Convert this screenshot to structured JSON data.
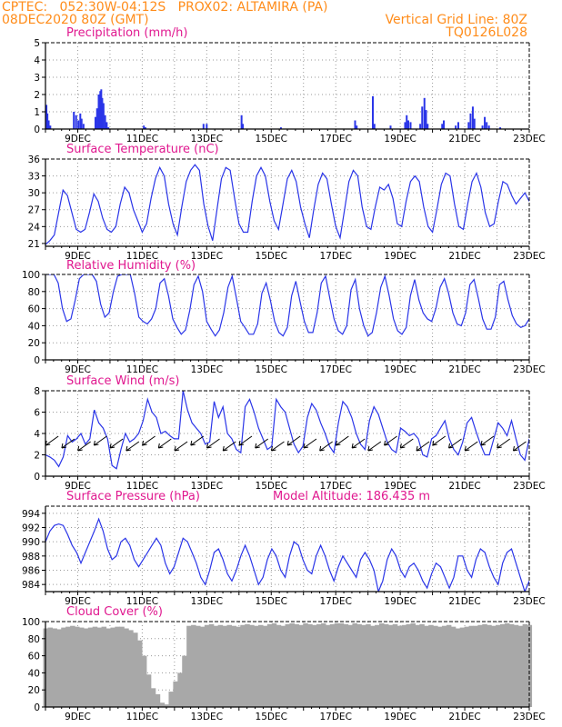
{
  "header": {
    "line1_left": "CPTEC:   052:30W-04:12S   PROX02: ALTAMIRA (PA)",
    "line2_left": "08DEC2020 80Z (GMT)",
    "line2_right": "Vertical Grid Line: 80Z",
    "line3_right": "TQ0126L028"
  },
  "colors": {
    "header": "#ff8c1a",
    "title": "#e0188f",
    "series": "#2a35e8",
    "cloud": "#a8a8a8"
  },
  "x_ticks": [
    "9DEC",
    "11DEC",
    "13DEC",
    "15DEC",
    "17DEC",
    "19DEC",
    "21DEC",
    "23DEC"
  ],
  "extra_label": "Model Altitude: 186.435 m",
  "chart_data": [
    {
      "type": "bar",
      "title": "Precipitation (mm/h)",
      "ylim": [
        0,
        5
      ],
      "yticks": [
        0,
        1,
        2,
        3,
        4,
        5
      ],
      "x_start_day": 8.0,
      "x_end_day": 23.0,
      "points": [
        [
          8.03,
          1.4
        ],
        [
          8.06,
          0.9
        ],
        [
          8.1,
          0.5
        ],
        [
          8.15,
          0.2
        ],
        [
          8.88,
          1.0
        ],
        [
          8.95,
          0.8
        ],
        [
          9.02,
          0.5
        ],
        [
          9.08,
          0.9
        ],
        [
          9.12,
          0.6
        ],
        [
          9.18,
          0.3
        ],
        [
          9.55,
          0.7
        ],
        [
          9.6,
          1.2
        ],
        [
          9.65,
          2.0
        ],
        [
          9.7,
          2.2
        ],
        [
          9.73,
          2.3
        ],
        [
          9.76,
          1.8
        ],
        [
          9.8,
          1.5
        ],
        [
          9.85,
          0.8
        ],
        [
          9.9,
          0.4
        ],
        [
          9.95,
          0.1
        ],
        [
          11.05,
          0.2
        ],
        [
          11.1,
          0.1
        ],
        [
          12.9,
          0.3
        ],
        [
          13.0,
          0.3
        ],
        [
          14.08,
          0.8
        ],
        [
          14.12,
          0.3
        ],
        [
          15.3,
          0.1
        ],
        [
          17.6,
          0.5
        ],
        [
          17.65,
          0.2
        ],
        [
          18.15,
          1.9
        ],
        [
          18.2,
          0.3
        ],
        [
          18.7,
          0.2
        ],
        [
          19.15,
          0.4
        ],
        [
          19.2,
          0.8
        ],
        [
          19.25,
          0.5
        ],
        [
          19.32,
          0.4
        ],
        [
          19.62,
          0.3
        ],
        [
          19.68,
          1.3
        ],
        [
          19.75,
          1.8
        ],
        [
          19.8,
          1.1
        ],
        [
          19.85,
          0.3
        ],
        [
          20.3,
          0.3
        ],
        [
          20.35,
          0.5
        ],
        [
          20.72,
          0.2
        ],
        [
          20.8,
          0.4
        ],
        [
          21.12,
          0.4
        ],
        [
          21.18,
          0.9
        ],
        [
          21.25,
          1.3
        ],
        [
          21.3,
          0.6
        ],
        [
          21.55,
          0.2
        ],
        [
          21.62,
          0.7
        ],
        [
          21.68,
          0.4
        ],
        [
          21.75,
          0.2
        ],
        [
          22.1,
          0.1
        ]
      ]
    },
    {
      "type": "line",
      "title": "Surface Temperature (nC)",
      "ylim": [
        20.5,
        36
      ],
      "yticks": [
        21,
        24,
        27,
        30,
        33,
        36
      ],
      "x_start_day": 8.0,
      "x_step_hours": 3,
      "values": [
        20.8,
        21.5,
        22.5,
        26.5,
        30.5,
        29.5,
        26.5,
        23.5,
        23.0,
        23.5,
        26.5,
        29.8,
        28.5,
        25.5,
        23.5,
        23.0,
        24.0,
        28.0,
        31.0,
        30.0,
        27.0,
        25.0,
        23.0,
        24.5,
        29.0,
        32.5,
        34.5,
        33.0,
        28.0,
        24.5,
        22.5,
        27.5,
        32.0,
        34.0,
        35.0,
        34.0,
        28.0,
        24.0,
        21.5,
        27.0,
        32.5,
        34.5,
        34.0,
        29.0,
        24.5,
        23.0,
        23.0,
        28.5,
        33.0,
        34.5,
        33.0,
        28.5,
        25.0,
        23.5,
        28.0,
        32.5,
        34.0,
        32.0,
        27.5,
        24.5,
        22.0,
        27.0,
        31.5,
        33.5,
        32.5,
        28.0,
        24.0,
        22.0,
        27.0,
        32.0,
        34.0,
        33.0,
        27.5,
        24.0,
        23.5,
        27.5,
        31.0,
        30.5,
        31.5,
        29.0,
        24.5,
        24.0,
        28.5,
        32.0,
        33.0,
        32.0,
        27.5,
        24.0,
        23.0,
        27.0,
        31.5,
        33.5,
        33.0,
        28.0,
        24.0,
        23.5,
        28.0,
        32.0,
        33.5,
        31.0,
        26.5,
        24.0,
        24.5,
        28.5,
        32.0,
        31.5,
        29.5,
        28.0,
        29.0,
        30.0,
        28.5
      ]
    },
    {
      "type": "line",
      "title": "Relative Humidity (%)",
      "ylim": [
        0,
        100
      ],
      "yticks": [
        0,
        20,
        40,
        60,
        80,
        100
      ],
      "x_start_day": 8.0,
      "x_step_hours": 3,
      "values": [
        100,
        100,
        100,
        90,
        60,
        45,
        48,
        70,
        95,
        100,
        100,
        100,
        92,
        65,
        50,
        55,
        80,
        98,
        100,
        100,
        100,
        78,
        50,
        45,
        42,
        48,
        60,
        90,
        95,
        75,
        48,
        38,
        30,
        35,
        58,
        88,
        98,
        80,
        45,
        36,
        28,
        35,
        55,
        85,
        98,
        72,
        45,
        38,
        30,
        30,
        42,
        78,
        90,
        70,
        45,
        32,
        28,
        38,
        75,
        92,
        68,
        45,
        32,
        32,
        55,
        90,
        98,
        72,
        48,
        34,
        30,
        40,
        82,
        94,
        60,
        40,
        28,
        32,
        55,
        85,
        98,
        75,
        48,
        34,
        30,
        38,
        75,
        94,
        70,
        55,
        48,
        45,
        60,
        85,
        95,
        78,
        55,
        42,
        40,
        55,
        88,
        94,
        72,
        48,
        36,
        36,
        50,
        88,
        92,
        70,
        52,
        42,
        38,
        40,
        48
      ]
    },
    {
      "type": "line",
      "title": "Surface Wind (m/s)",
      "ylim": [
        0,
        8
      ],
      "yticks": [
        0,
        2,
        4,
        6,
        8
      ],
      "x_start_day": 8.0,
      "x_step_hours": 3,
      "values": [
        2.0,
        1.8,
        1.5,
        0.9,
        1.8,
        3.8,
        3.2,
        3.5,
        4.0,
        3.0,
        3.5,
        6.2,
        5.0,
        4.5,
        3.5,
        1.0,
        0.7,
        2.5,
        4.0,
        3.2,
        3.5,
        4.0,
        5.2,
        7.2,
        6.0,
        5.5,
        4.0,
        4.2,
        3.8,
        3.5,
        3.5,
        8.0,
        6.2,
        5.0,
        4.5,
        4.0,
        3.0,
        3.2,
        7.0,
        5.5,
        6.5,
        4.0,
        3.5,
        2.5,
        2.2,
        6.5,
        7.2,
        6.0,
        4.5,
        3.5,
        2.5,
        2.8,
        7.2,
        6.5,
        6.0,
        4.5,
        3.0,
        2.2,
        2.8,
        5.5,
        6.8,
        6.2,
        5.0,
        4.0,
        2.8,
        2.2,
        5.0,
        7.0,
        6.5,
        5.5,
        4.0,
        3.0,
        2.5,
        5.2,
        6.5,
        5.8,
        4.5,
        3.2,
        2.5,
        2.2,
        4.5,
        4.2,
        3.8,
        4.0,
        3.5,
        2.0,
        1.8,
        3.5,
        3.8,
        4.5,
        5.2,
        3.5,
        2.5,
        2.0,
        3.2,
        5.0,
        5.5,
        4.2,
        3.0,
        2.0,
        2.0,
        3.5,
        5.0,
        4.5,
        3.8,
        5.2,
        3.5,
        2.0,
        1.5,
        3.5
      ]
    },
    {
      "type": "line",
      "title": "Surface Pressure (hPa)",
      "ylim": [
        983,
        995
      ],
      "yticks": [
        984,
        986,
        988,
        990,
        992,
        994
      ],
      "x_start_day": 8.0,
      "x_step_hours": 3,
      "values": [
        990.0,
        991.5,
        992.3,
        992.5,
        992.3,
        991.0,
        989.5,
        988.5,
        987.0,
        988.5,
        990.0,
        991.5,
        993.2,
        991.5,
        989.0,
        987.5,
        988.0,
        990.0,
        990.5,
        989.5,
        987.5,
        986.5,
        987.5,
        988.5,
        989.5,
        990.5,
        989.5,
        987.0,
        985.5,
        986.5,
        988.5,
        990.5,
        990.0,
        988.5,
        987.0,
        985.0,
        984.0,
        986.0,
        988.5,
        989.0,
        987.5,
        985.5,
        984.5,
        986.0,
        988.0,
        989.5,
        988.0,
        986.0,
        984.0,
        985.0,
        987.5,
        989.0,
        988.0,
        986.0,
        985.0,
        988.0,
        990.0,
        989.5,
        987.5,
        986.0,
        985.5,
        988.0,
        989.5,
        988.0,
        986.0,
        984.5,
        986.5,
        988.0,
        987.0,
        986.0,
        985.0,
        987.5,
        988.5,
        987.5,
        986.0,
        983.0,
        984.5,
        987.5,
        989.0,
        988.0,
        986.0,
        985.0,
        986.5,
        987.0,
        986.0,
        984.5,
        983.5,
        985.5,
        987.0,
        986.5,
        985.0,
        983.5,
        985.0,
        988.0,
        988.0,
        986.0,
        985.0,
        987.5,
        989.0,
        988.5,
        986.5,
        985.0,
        984.0,
        987.0,
        988.5,
        989.0,
        987.0,
        985.0,
        983.0,
        984.5
      ]
    },
    {
      "type": "bar",
      "title": "Cloud Cover (%)",
      "ylim": [
        0,
        100
      ],
      "yticks": [
        0,
        20,
        40,
        60,
        80,
        100
      ],
      "x_start_day": 8.0,
      "x_step_hours": 3,
      "values": [
        92,
        93,
        92,
        91,
        93,
        94,
        95,
        94,
        93,
        92,
        93,
        94,
        93,
        94,
        92,
        93,
        94,
        94,
        92,
        90,
        87,
        78,
        60,
        38,
        22,
        15,
        5,
        3,
        18,
        30,
        40,
        60,
        95,
        96,
        95,
        94,
        96,
        97,
        95,
        96,
        95,
        96,
        95,
        94,
        96,
        97,
        96,
        95,
        96,
        95,
        97,
        98,
        96,
        95,
        97,
        98,
        97,
        96,
        98,
        97,
        96,
        97,
        98,
        96,
        97,
        98,
        98,
        97,
        96,
        98,
        97,
        96,
        97,
        95,
        96,
        98,
        97,
        96,
        97,
        95,
        96,
        97,
        98,
        96,
        97,
        95,
        96,
        95,
        94,
        95,
        96,
        94,
        92,
        93,
        94,
        95,
        95,
        96,
        97,
        96,
        95,
        96,
        97,
        98,
        97,
        96,
        95,
        97,
        96
      ]
    }
  ]
}
